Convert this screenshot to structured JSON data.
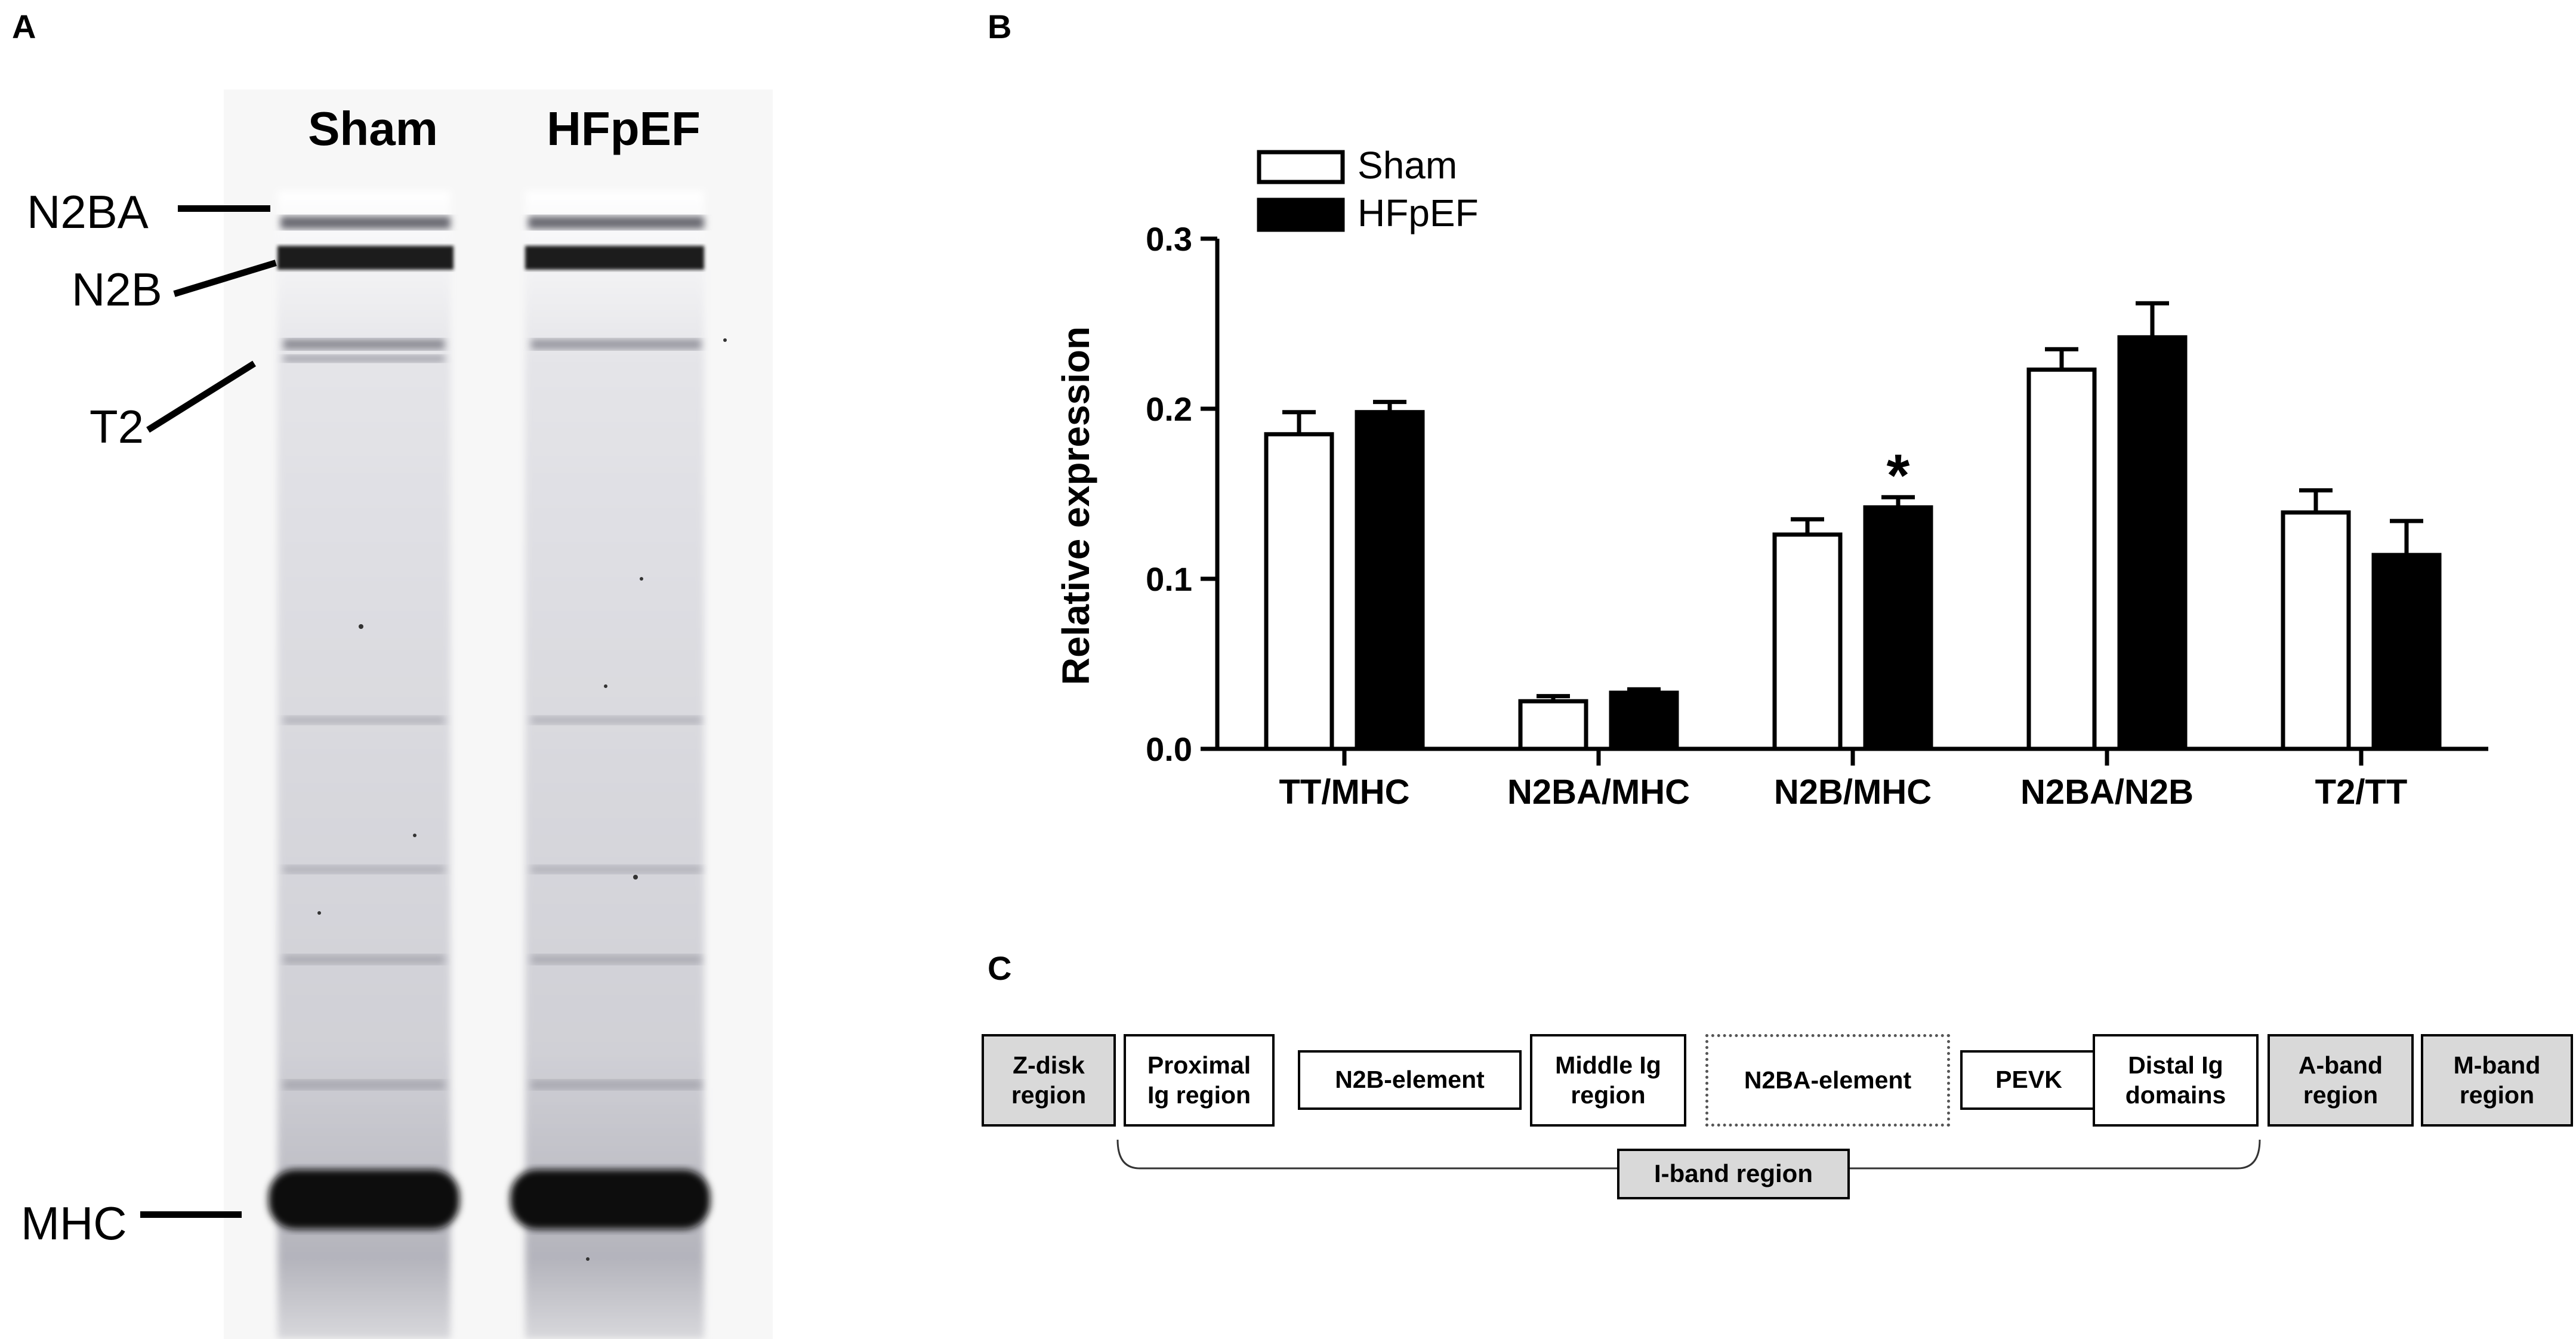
{
  "panels": {
    "a": "A",
    "b": "B",
    "c": "C"
  },
  "gel": {
    "lanes": [
      "Sham",
      "HFpEF"
    ],
    "bands": [
      "N2BA",
      "N2B",
      "T2",
      "MHC"
    ]
  },
  "chart_data": {
    "type": "bar",
    "categories": [
      "TT/MHC",
      "N2BA/MHC",
      "N2B/MHC",
      "N2BA/N2B",
      "T2/TT"
    ],
    "series": [
      {
        "name": "Sham",
        "values": [
          0.185,
          0.028,
          0.126,
          0.223,
          0.139
        ],
        "errors": [
          0.013,
          0.003,
          0.009,
          0.012,
          0.013
        ],
        "fill": "#ffffff"
      },
      {
        "name": "HFpEF",
        "values": [
          0.198,
          0.033,
          0.142,
          0.242,
          0.114
        ],
        "errors": [
          0.006,
          0.002,
          0.006,
          0.02,
          0.02
        ],
        "fill": "#000000"
      }
    ],
    "ylabel": "Relative expression",
    "ylim": [
      0,
      0.3
    ],
    "yticks": [
      "0.0",
      "0.1",
      "0.2",
      "0.3"
    ],
    "ytick_values": [
      0,
      0.1,
      0.2,
      0.3
    ],
    "annotations": [
      {
        "category": "N2B/MHC",
        "series": "HFpEF",
        "text": "*"
      }
    ],
    "legend_position": "top-left",
    "grid": false
  },
  "titin_domains": {
    "boxes": [
      {
        "label": "Z-disk\nregion",
        "style": "grey"
      },
      {
        "label": "Proximal\nIg region",
        "style": "plain"
      },
      {
        "label": "N2B-element",
        "style": "plain"
      },
      {
        "label": "Middle Ig\nregion",
        "style": "plain"
      },
      {
        "label": "N2BA-element",
        "style": "dotted"
      },
      {
        "label": "PEVK",
        "style": "plain"
      },
      {
        "label": "Distal Ig\ndomains",
        "style": "plain"
      },
      {
        "label": "A-band\nregion",
        "style": "grey"
      },
      {
        "label": "M-band\nregion",
        "style": "grey"
      }
    ],
    "bracket_label": "I-band region"
  }
}
